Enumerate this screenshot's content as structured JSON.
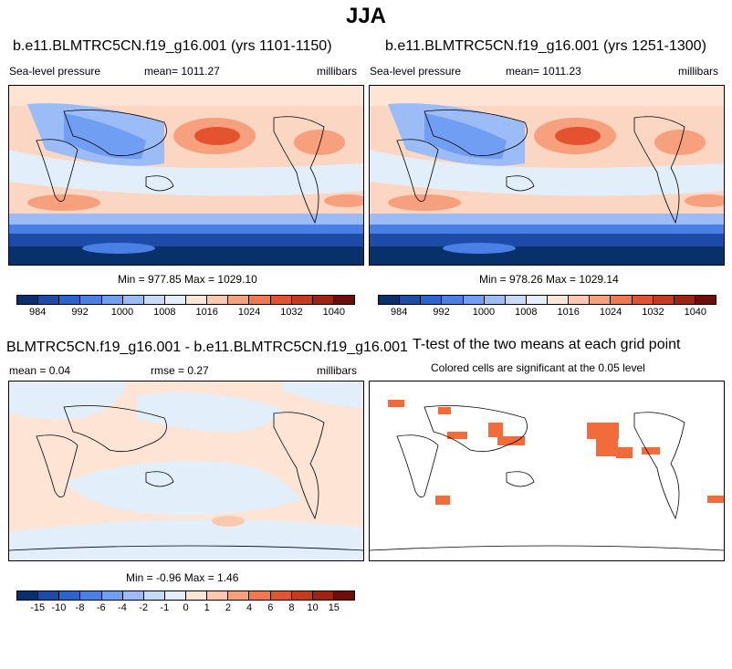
{
  "figure_title": "JJA",
  "panels": [
    {
      "title": "b.e11.BLMTRC5CN.f19_g16.001 (yrs 1101-1150)",
      "left_label": "Sea-level pressure",
      "mean_text": "mean= 1011.27",
      "units": "millibars",
      "minmax": "Min = 977.85 Max = 1029.10",
      "colorbar_ticks": [
        "984",
        "992",
        "1000",
        "1008",
        "1016",
        "1024",
        "1032",
        "1040"
      ]
    },
    {
      "title": "b.e11.BLMTRC5CN.f19_g16.001 (yrs 1251-1300)",
      "left_label": "Sea-level pressure",
      "mean_text": "mean= 1011.23",
      "units": "millibars",
      "minmax": "Min = 978.26 Max = 1029.14",
      "colorbar_ticks": [
        "984",
        "992",
        "1000",
        "1008",
        "1016",
        "1024",
        "1032",
        "1040"
      ]
    },
    {
      "title": "BLMTRC5CN.f19_g16.001 - b.e11.BLMTRC5CN.f19_g16.001",
      "mean_text": "mean =   0.04",
      "rmse_text": "rmse =   0.27",
      "units": "millibars",
      "minmax": "Min =  -0.96 Max =   1.46",
      "colorbar_ticks": [
        "-15",
        "-10",
        "-8",
        "-6",
        "-4",
        "-2",
        "-1",
        "0",
        "1",
        "2",
        "4",
        "6",
        "8",
        "10",
        "15"
      ]
    },
    {
      "title": "T-test of the two means at each grid point",
      "subtitle": "Colored cells are significant at the 0.05 level"
    }
  ],
  "colors": {
    "abs_scale": [
      "#08306b",
      "#1c4ca8",
      "#2b63d1",
      "#4a80e6",
      "#6f9ef2",
      "#9bbcf6",
      "#c6daf8",
      "#e3eefb",
      "#fde4d4",
      "#fbc7ad",
      "#f7a07d",
      "#f27852",
      "#e4532f",
      "#c73a1e",
      "#9e2313",
      "#6e0d09"
    ],
    "diff_scale": [
      "#08306b",
      "#1c4ca8",
      "#2b63d1",
      "#4a80e6",
      "#6f9ef2",
      "#9bbcf6",
      "#c6daf8",
      "#e3eefb",
      "#fde4d4",
      "#fbc7ad",
      "#f7a07d",
      "#f27852",
      "#e4532f",
      "#c73a1e",
      "#9e2313",
      "#6e0d09"
    ],
    "significant": "#f26b3a"
  }
}
